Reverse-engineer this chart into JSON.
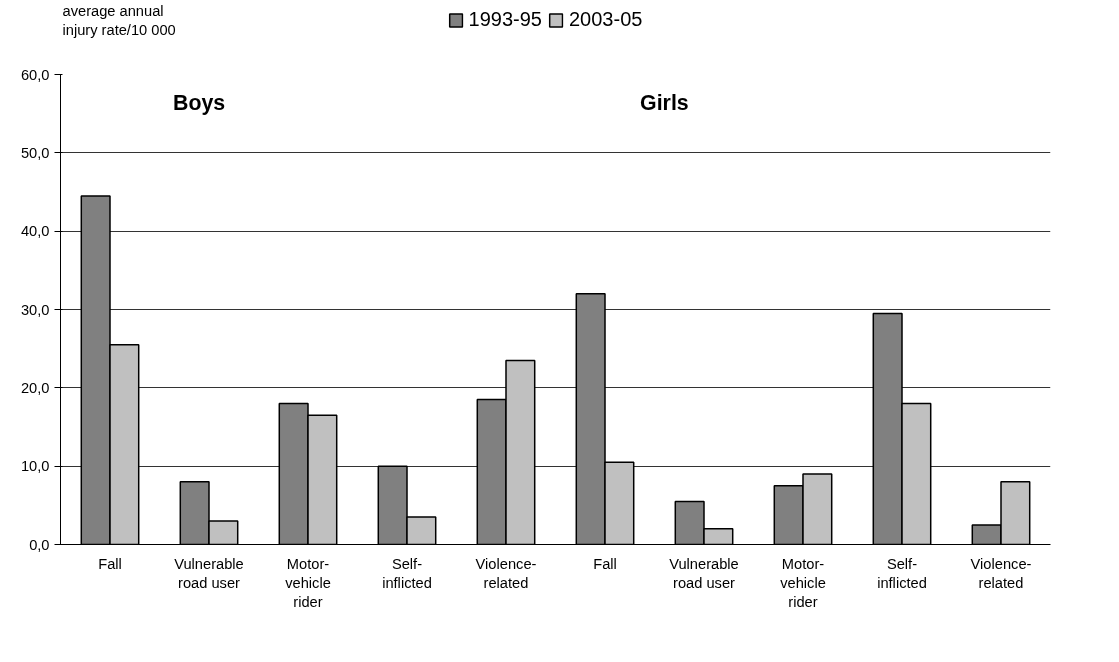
{
  "chart_data": {
    "type": "bar",
    "ylabel": "average annual injury rate/10 000",
    "categories": [
      "Fall",
      "Vulnerable road user",
      "Motor-vehicle rider",
      "Self-inflicted",
      "Violence-related",
      "Fall",
      "Vulnerable road user",
      "Motor-vehicle rider",
      "Self-inflicted",
      "Violence-related"
    ],
    "series": [
      {
        "name": "1993-95",
        "color": "#808080",
        "values": [
          44.5,
          8,
          18,
          10,
          18.5,
          32,
          5.5,
          7.5,
          29.5,
          2.5
        ]
      },
      {
        "name": "2003-05",
        "color": "#c0c0c0",
        "values": [
          25.5,
          3,
          16.5,
          3.5,
          23.5,
          10.5,
          2,
          9,
          18,
          8
        ]
      }
    ],
    "annotations": [
      "Boys",
      "Girls"
    ],
    "ylim": [
      0,
      60
    ],
    "yticks": [
      {
        "value": 0,
        "label": "0,0"
      },
      {
        "value": 10,
        "label": "10,0"
      },
      {
        "value": 20,
        "label": "20,0"
      },
      {
        "value": 30,
        "label": "30,0"
      },
      {
        "value": 40,
        "label": "40,0"
      },
      {
        "value": 50,
        "label": "50,0"
      },
      {
        "value": 60,
        "label": "60,0"
      }
    ],
    "grid": "y",
    "legend": "top"
  }
}
